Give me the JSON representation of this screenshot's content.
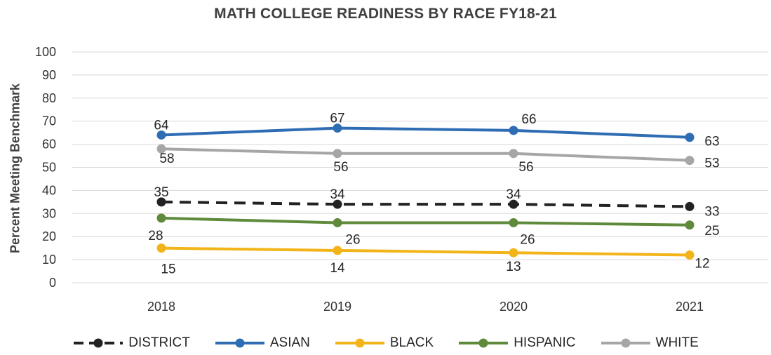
{
  "chart_data": {
    "type": "line",
    "title": "MATH COLLEGE READINESS BY RACE FY18-21",
    "ylabel": "Percent Meeting Benchmark",
    "xlabel": "",
    "categories": [
      "2018",
      "2019",
      "2020",
      "2021"
    ],
    "ylim": [
      0,
      100
    ],
    "yticks": [
      0,
      10,
      20,
      30,
      40,
      50,
      60,
      70,
      80,
      90,
      100
    ],
    "grid": true,
    "legend_position": "bottom",
    "series": [
      {
        "name": "DISTRICT",
        "values": [
          35,
          34,
          34,
          33
        ],
        "color": "#222222",
        "style": "dashed"
      },
      {
        "name": "ASIAN",
        "values": [
          64,
          67,
          66,
          63
        ],
        "color": "#2e6db4",
        "style": "solid"
      },
      {
        "name": "BLACK",
        "values": [
          15,
          14,
          13,
          12
        ],
        "color": "#f2b418",
        "style": "solid"
      },
      {
        "name": "HISPANIC",
        "values": [
          28,
          26,
          26,
          25
        ],
        "color": "#5f8a3c",
        "style": "solid"
      },
      {
        "name": "WHITE",
        "values": [
          58,
          56,
          56,
          53
        ],
        "color": "#a6a6a6",
        "style": "solid"
      }
    ]
  }
}
